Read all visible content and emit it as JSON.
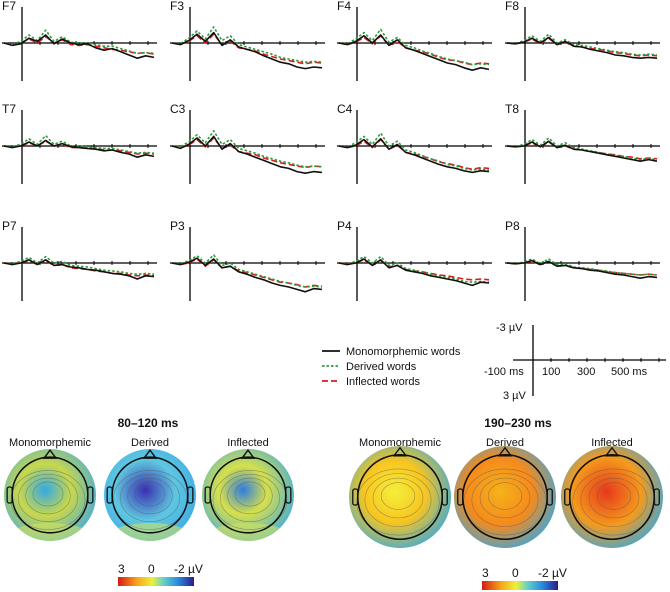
{
  "chart_data": {
    "type": "line",
    "description_units": "ERP amplitude (µV) vs time (ms); negative plotted up",
    "series": [
      {
        "name": "Monomorphemic words",
        "color": "#111111",
        "dash": "solid"
      },
      {
        "name": "Derived words",
        "color": "#2e9a3c",
        "dash": "dotted"
      },
      {
        "name": "Inflected words",
        "color": "#e0191c",
        "dash": "dashed"
      }
    ],
    "time_ms": [
      -100,
      -60,
      -20,
      20,
      60,
      100,
      140,
      180,
      220,
      260,
      300,
      340,
      380,
      420,
      460,
      500,
      540,
      580,
      620
    ],
    "electrodes": [
      {
        "label": "F7",
        "values": {
          "Monomorphemic words": [
            0,
            0.3,
            0.1,
            -0.6,
            -0.2,
            -1.0,
            0.1,
            -0.5,
            0,
            0.2,
            0.1,
            0.6,
            0.9,
            0.7,
            1.1,
            1.5,
            1.9,
            1.6,
            1.8
          ],
          "Derived words": [
            0,
            0.2,
            -0.2,
            -1.0,
            -0.3,
            -1.6,
            -0.2,
            -0.8,
            -0.1,
            0,
            0,
            0.2,
            0.4,
            0.4,
            0.7,
            1.0,
            1.3,
            1.2,
            1.3
          ],
          "Inflected words": [
            0,
            0.2,
            0,
            -0.5,
            0,
            -0.8,
            0,
            -0.4,
            0.2,
            0.3,
            0.2,
            0.4,
            0.6,
            0.8,
            0.9,
            1.1,
            1.3,
            1.2,
            1.4
          ]
        }
      },
      {
        "label": "F3",
        "values": {
          "Monomorphemic words": [
            0,
            0.2,
            -0.3,
            -1.1,
            -0.2,
            -1.3,
            0.3,
            -0.4,
            0.5,
            0.8,
            1.1,
            1.6,
            2.0,
            2.4,
            2.6,
            3.0,
            3.2,
            3.0,
            3.1
          ],
          "Derived words": [
            0,
            0.1,
            -0.6,
            -1.5,
            -0.5,
            -2.0,
            -0.3,
            -0.9,
            0.2,
            0.5,
            0.8,
            1.1,
            1.4,
            1.8,
            2.0,
            2.2,
            2.4,
            2.3,
            2.4
          ],
          "Inflected words": [
            0,
            0.2,
            -0.2,
            -0.9,
            0,
            -1.1,
            0.2,
            -0.2,
            0.6,
            0.8,
            1.0,
            1.4,
            1.7,
            2.0,
            2.2,
            2.4,
            2.6,
            2.4,
            2.5
          ]
        }
      },
      {
        "label": "F4",
        "values": {
          "Monomorphemic words": [
            0,
            0.2,
            -0.2,
            -0.9,
            0,
            -1.0,
            0.3,
            -0.4,
            0.6,
            0.9,
            1.3,
            1.7,
            2.1,
            2.5,
            2.7,
            3.1,
            3.4,
            3.1,
            3.3
          ],
          "Derived words": [
            0,
            0.1,
            -0.5,
            -1.3,
            -0.3,
            -1.7,
            -0.1,
            -0.7,
            0.3,
            0.6,
            1.0,
            1.3,
            1.7,
            2.0,
            2.2,
            2.4,
            2.7,
            2.6,
            2.7
          ],
          "Inflected words": [
            0,
            0.2,
            -0.1,
            -0.7,
            0.1,
            -0.9,
            0.3,
            -0.2,
            0.6,
            0.9,
            1.1,
            1.4,
            1.8,
            2.1,
            2.2,
            2.5,
            2.7,
            2.5,
            2.6
          ]
        }
      },
      {
        "label": "F8",
        "values": {
          "Monomorphemic words": [
            0,
            0.1,
            -0.1,
            -0.6,
            0,
            -0.7,
            0.2,
            -0.2,
            0.4,
            0.5,
            0.8,
            1.0,
            1.2,
            1.5,
            1.6,
            1.8,
            1.9,
            1.8,
            1.9
          ],
          "Derived words": [
            0,
            0.1,
            -0.3,
            -0.9,
            -0.2,
            -1.1,
            0,
            -0.4,
            0.2,
            0.3,
            0.5,
            0.7,
            0.9,
            1.1,
            1.2,
            1.4,
            1.5,
            1.4,
            1.5
          ],
          "Inflected words": [
            0,
            0.1,
            -0.1,
            -0.5,
            0.1,
            -0.6,
            0.2,
            -0.1,
            0.4,
            0.5,
            0.7,
            0.8,
            1.0,
            1.2,
            1.3,
            1.5,
            1.6,
            1.5,
            1.6
          ]
        }
      },
      {
        "label": "T7",
        "values": {
          "Monomorphemic words": [
            0,
            0.2,
            0,
            -0.5,
            0,
            -0.7,
            0,
            -0.3,
            0.1,
            0.2,
            0.3,
            0.4,
            0.6,
            0.5,
            0.8,
            1.0,
            1.4,
            1.1,
            1.3
          ],
          "Derived words": [
            0,
            0.1,
            -0.2,
            -0.9,
            -0.2,
            -1.3,
            -0.2,
            -0.6,
            0,
            0,
            0.1,
            0.2,
            0.3,
            0.3,
            0.5,
            0.7,
            0.9,
            0.8,
            0.9
          ],
          "Inflected words": [
            0,
            0.1,
            0,
            -0.4,
            0,
            -0.6,
            0,
            -0.2,
            0.2,
            0.2,
            0.3,
            0.3,
            0.5,
            0.5,
            0.6,
            0.8,
            1.0,
            0.9,
            1.0
          ]
        }
      },
      {
        "label": "C3",
        "values": {
          "Monomorphemic words": [
            0,
            0.3,
            -0.2,
            -1.0,
            0,
            -1.2,
            0.4,
            -0.3,
            0.7,
            1.0,
            1.4,
            1.8,
            2.2,
            2.6,
            2.8,
            3.2,
            3.4,
            3.2,
            3.3
          ],
          "Derived words": [
            0,
            0.1,
            -0.5,
            -1.4,
            -0.4,
            -1.9,
            -0.2,
            -0.8,
            0.3,
            0.6,
            0.9,
            1.3,
            1.6,
            1.9,
            2.1,
            2.4,
            2.6,
            2.5,
            2.6
          ],
          "Inflected words": [
            0,
            0.2,
            -0.1,
            -0.8,
            0.1,
            -1.0,
            0.3,
            -0.1,
            0.7,
            0.9,
            1.1,
            1.5,
            1.8,
            2.1,
            2.3,
            2.5,
            2.7,
            2.5,
            2.6
          ]
        }
      },
      {
        "label": "C4",
        "values": {
          "Monomorphemic words": [
            0,
            0.2,
            -0.1,
            -0.8,
            0.1,
            -0.9,
            0.4,
            -0.2,
            0.8,
            1.1,
            1.5,
            1.9,
            2.3,
            2.6,
            2.8,
            3.1,
            3.3,
            3.1,
            3.2
          ],
          "Derived words": [
            0,
            0.1,
            -0.4,
            -1.2,
            -0.2,
            -1.6,
            0,
            -0.6,
            0.5,
            0.8,
            1.2,
            1.6,
            1.9,
            2.3,
            2.5,
            2.8,
            3.0,
            2.9,
            3.0
          ],
          "Inflected words": [
            0,
            0.2,
            0,
            -0.6,
            0.2,
            -0.8,
            0.4,
            -0.1,
            0.8,
            1.0,
            1.3,
            1.6,
            2.0,
            2.2,
            2.4,
            2.7,
            2.9,
            2.7,
            2.8
          ]
        }
      },
      {
        "label": "T8",
        "values": {
          "Monomorphemic words": [
            0,
            0.1,
            0,
            -0.5,
            0.1,
            -0.6,
            0.2,
            -0.1,
            0.4,
            0.5,
            0.7,
            0.9,
            1.1,
            1.3,
            1.5,
            1.7,
            1.9,
            1.7,
            1.9
          ],
          "Derived words": [
            0,
            0.1,
            -0.2,
            -0.8,
            -0.1,
            -1.0,
            0,
            -0.4,
            0.2,
            0.4,
            0.6,
            0.8,
            1.0,
            1.2,
            1.3,
            1.5,
            1.7,
            1.6,
            1.7
          ],
          "Inflected words": [
            0,
            0.1,
            0,
            -0.4,
            0.1,
            -0.5,
            0.2,
            0,
            0.4,
            0.5,
            0.7,
            0.8,
            1.0,
            1.1,
            1.3,
            1.4,
            1.6,
            1.5,
            1.6
          ]
        }
      },
      {
        "label": "P7",
        "values": {
          "Monomorphemic words": [
            0,
            0.2,
            0,
            -0.4,
            0.2,
            -0.4,
            0.3,
            0.2,
            0.5,
            0.6,
            0.8,
            0.9,
            1.1,
            1.3,
            1.4,
            1.6,
            2.0,
            1.6,
            1.7
          ],
          "Derived words": [
            0,
            0.1,
            -0.2,
            -0.7,
            0,
            -0.8,
            0,
            -0.2,
            0.3,
            0.4,
            0.5,
            0.7,
            0.9,
            1.0,
            1.1,
            1.3,
            1.4,
            1.3,
            1.4
          ],
          "Inflected words": [
            0,
            0.1,
            0,
            -0.3,
            0.2,
            -0.3,
            0.3,
            0.2,
            0.6,
            0.7,
            0.8,
            1.0,
            1.1,
            1.3,
            1.3,
            1.5,
            1.6,
            1.5,
            1.6
          ]
        }
      },
      {
        "label": "P3",
        "values": {
          "Monomorphemic words": [
            0,
            0.2,
            -0.1,
            -0.6,
            0.3,
            -0.5,
            0.6,
            0.4,
            1.1,
            1.4,
            1.8,
            2.1,
            2.5,
            2.8,
            3.0,
            3.3,
            3.6,
            3.2,
            3.3
          ],
          "Derived words": [
            0,
            0.1,
            -0.3,
            -0.9,
            0,
            -1.0,
            0.3,
            0,
            0.8,
            1.1,
            1.4,
            1.7,
            2.0,
            2.3,
            2.5,
            2.8,
            3.0,
            2.9,
            3.0
          ],
          "Inflected words": [
            0,
            0.2,
            0,
            -0.5,
            0.4,
            -0.4,
            0.6,
            0.4,
            1.0,
            1.2,
            1.5,
            1.8,
            2.1,
            2.4,
            2.5,
            2.7,
            3.0,
            2.8,
            2.9
          ]
        }
      },
      {
        "label": "P4",
        "values": {
          "Monomorphemic words": [
            0,
            0.2,
            0,
            -0.5,
            0.3,
            -0.4,
            0.6,
            0.3,
            0.9,
            1.1,
            1.3,
            1.6,
            1.8,
            2.0,
            2.2,
            2.5,
            2.8,
            2.4,
            2.5
          ],
          "Derived words": [
            0,
            0.1,
            -0.2,
            -0.8,
            0,
            -0.8,
            0.3,
            0,
            0.7,
            0.9,
            1.1,
            1.4,
            1.6,
            1.8,
            2.0,
            2.3,
            2.4,
            2.3,
            2.4
          ],
          "Inflected words": [
            0,
            0.1,
            0,
            -0.4,
            0.3,
            -0.3,
            0.5,
            0.3,
            0.8,
            1.0,
            1.1,
            1.3,
            1.5,
            1.6,
            1.8,
            2.0,
            2.1,
            2.0,
            2.1
          ]
        }
      },
      {
        "label": "P8",
        "values": {
          "Monomorphemic words": [
            0,
            0.1,
            0,
            -0.3,
            0.2,
            -0.2,
            0.4,
            0.3,
            0.6,
            0.7,
            0.9,
            1.0,
            1.2,
            1.4,
            1.5,
            1.7,
            1.9,
            1.7,
            1.8
          ],
          "Derived words": [
            0,
            0.1,
            -0.1,
            -0.5,
            0.1,
            -0.5,
            0.2,
            0.1,
            0.5,
            0.6,
            0.7,
            0.9,
            1.0,
            1.2,
            1.3,
            1.4,
            1.5,
            1.4,
            1.5
          ],
          "Inflected words": [
            0,
            0.1,
            0,
            -0.2,
            0.2,
            -0.2,
            0.4,
            0.3,
            0.6,
            0.7,
            0.8,
            0.9,
            1.1,
            1.2,
            1.3,
            1.4,
            1.5,
            1.4,
            1.5
          ]
        }
      }
    ],
    "legend": [
      "Monomorphemic words",
      "Derived words",
      "Inflected words"
    ],
    "scale_bar": {
      "y_top": "-3 µV",
      "y_bottom": "3 µV",
      "x_labels": [
        "-100 ms",
        "100",
        "300",
        "500 ms"
      ]
    },
    "topomaps": [
      {
        "window": "80–120 ms",
        "maps": [
          {
            "label": "Monomorphemic",
            "blobs": [
              {
                "color": "#33a9e8",
                "strength": 0.7
              },
              {
                "color": "#c9d84a",
                "strength": 0.5
              }
            ]
          },
          {
            "label": "Derived",
            "blobs": [
              {
                "color": "#3a2fb0",
                "strength": 0.9
              },
              {
                "color": "#5fc7e0",
                "strength": 0.5
              }
            ]
          },
          {
            "label": "Inflected",
            "blobs": [
              {
                "color": "#2f7de0",
                "strength": 0.6
              },
              {
                "color": "#d7e04a",
                "strength": 0.6
              }
            ]
          }
        ]
      },
      {
        "window": "190–230 ms",
        "maps": [
          {
            "label": "Monomorphemic",
            "blobs": [
              {
                "color": "#f5ef3a",
                "strength": 0.8
              },
              {
                "color": "#f7c520",
                "strength": 0.5
              }
            ]
          },
          {
            "label": "Derived",
            "blobs": [
              {
                "color": "#f5b21a",
                "strength": 0.9
              },
              {
                "color": "#f58a1c",
                "strength": 0.6
              }
            ]
          },
          {
            "label": "Inflected",
            "blobs": [
              {
                "color": "#e5391c",
                "strength": 0.95
              },
              {
                "color": "#f59a1c",
                "strength": 0.7
              }
            ]
          }
        ]
      }
    ],
    "colorbars": [
      {
        "labels": [
          "3",
          "0",
          "-2 µV"
        ]
      },
      {
        "labels": [
          "3",
          "0",
          "-2 µV"
        ]
      }
    ]
  }
}
